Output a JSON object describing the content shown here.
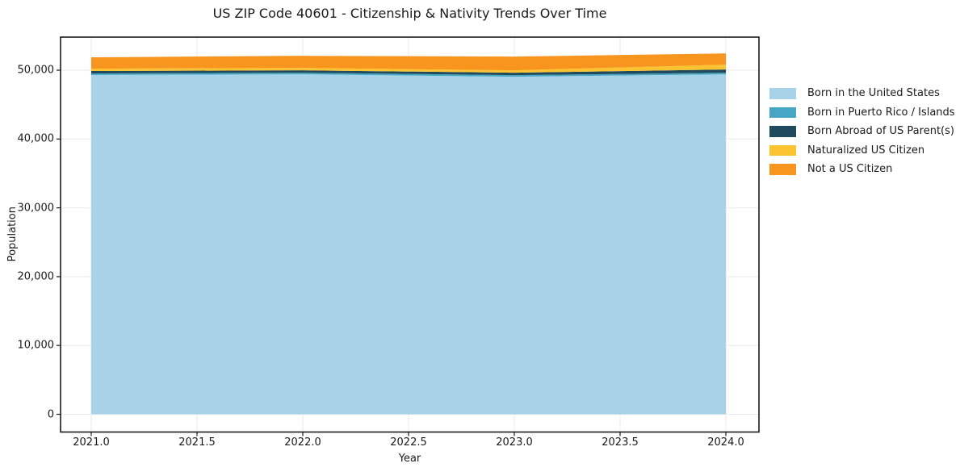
{
  "chart": {
    "title": "US ZIP Code 40601 - Citizenship & Nativity Trends Over Time",
    "xlabel": "Year",
    "ylabel": "Population"
  },
  "chart_data": {
    "type": "area",
    "stacked": true,
    "title": "US ZIP Code 40601 - Citizenship & Nativity Trends Over Time",
    "xlabel": "Year",
    "ylabel": "Population",
    "x": [
      2021,
      2022,
      2023,
      2024
    ],
    "series": [
      {
        "name": "Born in the United States",
        "color": "#a8d2e7",
        "values": [
          49300,
          49400,
          49050,
          49400
        ]
      },
      {
        "name": "Born in Puerto Rico / Islands",
        "color": "#46a6c3",
        "values": [
          230,
          230,
          230,
          230
        ]
      },
      {
        "name": "Born Abroad of US Parent(s)",
        "color": "#204a5d",
        "values": [
          350,
          350,
          350,
          470
        ]
      },
      {
        "name": "Naturalized US Citizen",
        "color": "#fcc330",
        "values": [
          350,
          350,
          350,
          700
        ]
      },
      {
        "name": "Not a US Citizen",
        "color": "#f8951e",
        "values": [
          1640,
          1760,
          2000,
          1640
        ]
      }
    ],
    "xticks": {
      "values": [
        2021.0,
        2021.5,
        2022.0,
        2022.5,
        2023.0,
        2023.5,
        2024.0
      ],
      "labels": [
        "2021.0",
        "2021.5",
        "2022.0",
        "2022.5",
        "2023.0",
        "2023.5",
        "2024.0"
      ]
    },
    "yticks": {
      "values": [
        0,
        10000,
        20000,
        30000,
        40000,
        50000
      ],
      "labels": [
        "0",
        "10,000",
        "20,000",
        "30,000",
        "40,000",
        "50,000"
      ]
    },
    "xlim": [
      2020.855,
      2024.157
    ],
    "ylim": [
      -2460,
      54800
    ],
    "grid": true,
    "grid_color": "#e9e9e9",
    "frame_color": "#1a1a1a",
    "background": "#ffffff",
    "legend_position": "center-right-outside"
  }
}
